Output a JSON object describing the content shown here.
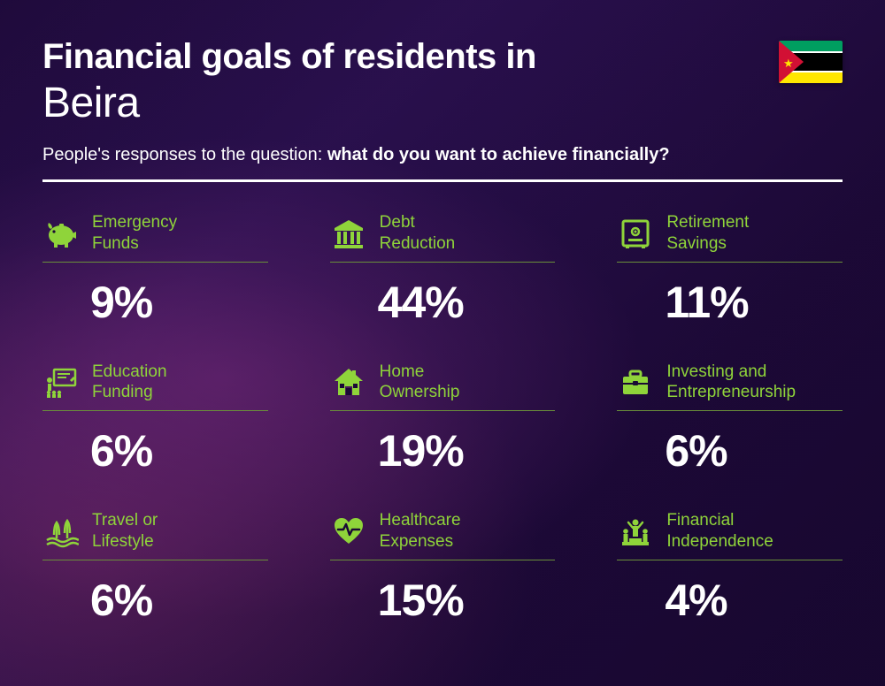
{
  "colors": {
    "accent": "#8fd43a",
    "text": "#ffffff",
    "rule": "#6a8f3a"
  },
  "header": {
    "title_bold": "Financial goals of residents in",
    "title_light": "Beira",
    "subtitle_prefix": "People's responses to the question: ",
    "subtitle_bold": "what do you want to achieve financially?"
  },
  "flag": {
    "stripes": [
      {
        "color": "#009e60",
        "height": 12
      },
      {
        "color": "#ffffff",
        "height": 2
      },
      {
        "color": "#000000",
        "height": 20
      },
      {
        "color": "#ffffff",
        "height": 2
      },
      {
        "color": "#ffe600",
        "height": 12
      }
    ],
    "triangle_color": "#d21034",
    "star_color": "#ffe600"
  },
  "items": [
    {
      "icon": "piggy-bank",
      "label_l1": "Emergency",
      "label_l2": "Funds",
      "value": "9%"
    },
    {
      "icon": "bank",
      "label_l1": "Debt",
      "label_l2": "Reduction",
      "value": "44%"
    },
    {
      "icon": "safe",
      "label_l1": "Retirement",
      "label_l2": "Savings",
      "value": "11%"
    },
    {
      "icon": "education",
      "label_l1": "Education",
      "label_l2": "Funding",
      "value": "6%"
    },
    {
      "icon": "home",
      "label_l1": "Home",
      "label_l2": "Ownership",
      "value": "19%"
    },
    {
      "icon": "briefcase",
      "label_l1": "Investing and",
      "label_l2": "Entrepreneurship",
      "value": "6%"
    },
    {
      "icon": "travel",
      "label_l1": "Travel or",
      "label_l2": "Lifestyle",
      "value": "6%"
    },
    {
      "icon": "healthcare",
      "label_l1": "Healthcare",
      "label_l2": "Expenses",
      "value": "15%"
    },
    {
      "icon": "independence",
      "label_l1": "Financial",
      "label_l2": "Independence",
      "value": "4%"
    }
  ]
}
